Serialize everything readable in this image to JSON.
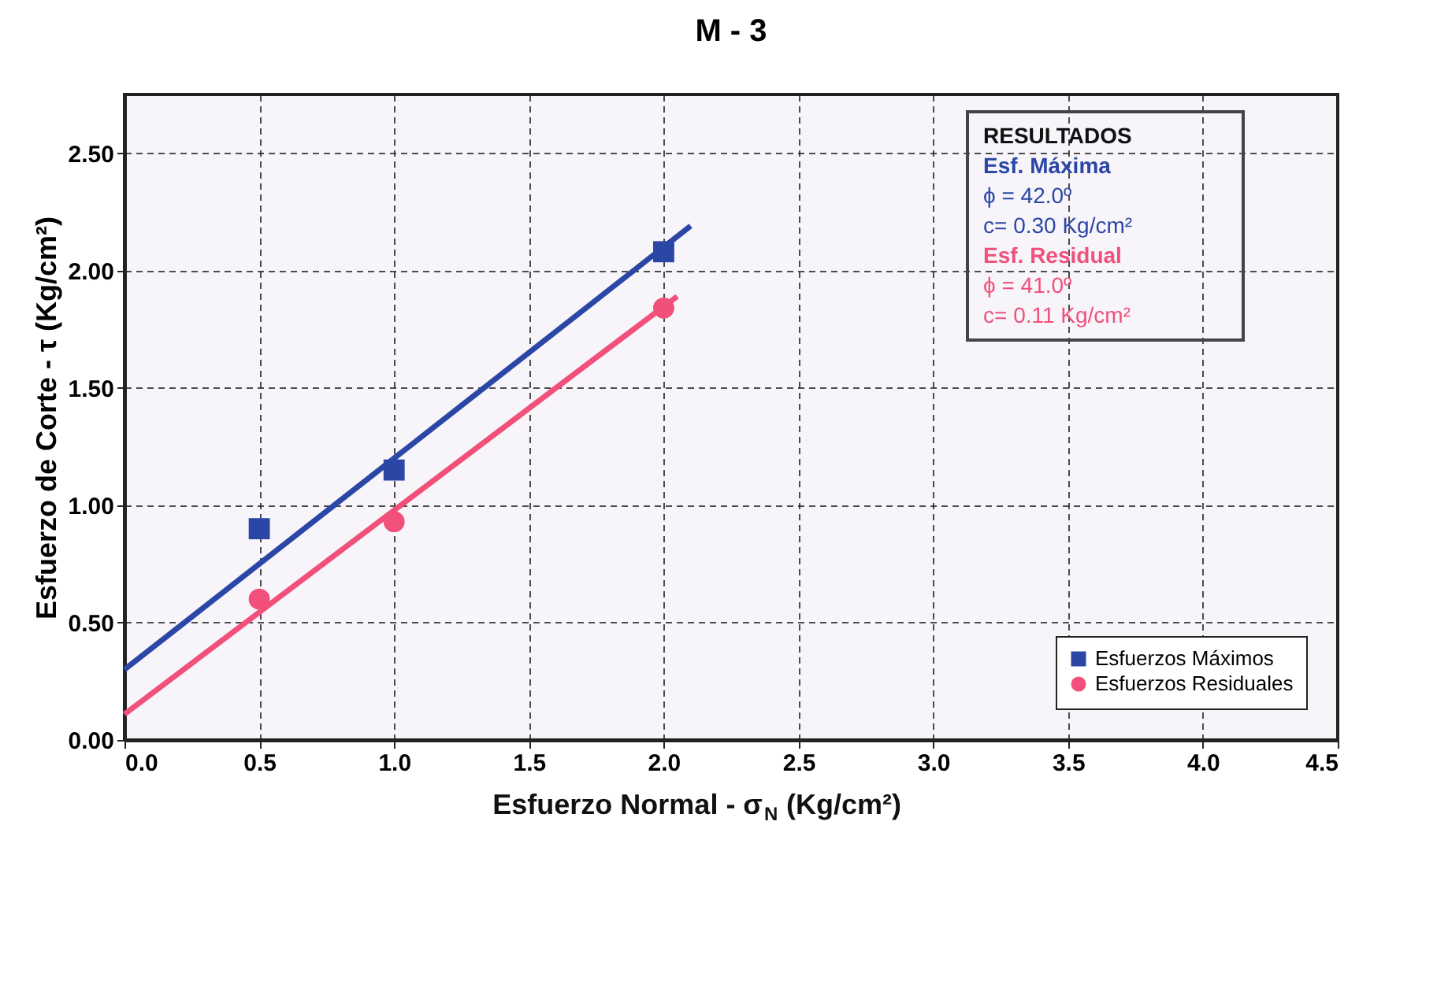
{
  "chart_data": {
    "type": "scatter",
    "title": "M - 3",
    "xlabel": "Esfuerzo Normal - σ$_{N}$ (Kg/cm²)",
    "ylabel": "Esfuerzo de Corte - τ (Kg/cm²)",
    "xlim": [
      0,
      4.5
    ],
    "ylim": [
      0,
      2.75
    ],
    "xticks": [
      {
        "value": 0,
        "label": "0.0"
      },
      {
        "value": 0.5,
        "label": "0.5"
      },
      {
        "value": 1,
        "label": "1.0"
      },
      {
        "value": 1.5,
        "label": "1.5"
      },
      {
        "value": 2,
        "label": "2.0"
      },
      {
        "value": 2.5,
        "label": "2.5"
      },
      {
        "value": 3,
        "label": "3.0"
      },
      {
        "value": 3.5,
        "label": "3.5"
      },
      {
        "value": 4,
        "label": "4.0"
      },
      {
        "value": 4.5,
        "label": "4.5"
      }
    ],
    "yticks": [
      {
        "value": 0,
        "label": "0.00"
      },
      {
        "value": 0.5,
        "label": "0.50"
      },
      {
        "value": 1,
        "label": "1.00"
      },
      {
        "value": 1.5,
        "label": "1.50"
      },
      {
        "value": 2,
        "label": "2.00"
      },
      {
        "value": 2.5,
        "label": "2.50"
      }
    ],
    "grid": true,
    "legend": "bottom right",
    "series": [
      {
        "name": "Esfuerzos Máximos",
        "marker": "square",
        "color": "#2b47a6",
        "x": [
          0.5,
          1,
          2
        ],
        "values": [
          0.9,
          1.15,
          2.08
        ]
      },
      {
        "name": "Esfuerzos Residuales",
        "marker": "circle",
        "color": "#f0507a",
        "x": [
          0.5,
          1,
          2
        ],
        "values": [
          0.6,
          0.93,
          1.84
        ]
      },
      {
        "type": "line",
        "color": "#2b47a6",
        "x": [
          0,
          2.1
        ],
        "values": [
          0.3,
          2.19
        ]
      },
      {
        "type": "line",
        "color": "#f0507a",
        "x": [
          0,
          2.05
        ],
        "values": [
          0.11,
          1.89
        ]
      }
    ],
    "annotations": [
      "RESULTADOS",
      "Esf. Máxima",
      "ϕ = 42.0º",
      "c= 0.30 Kg/cm²",
      "Esf. Residual",
      "ϕ = 41.0º",
      "c= 0.11 Kg/cm²"
    ]
  }
}
